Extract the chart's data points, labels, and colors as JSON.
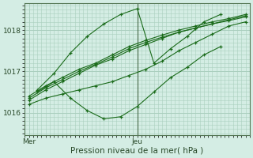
{
  "bg_color": "#d4ede4",
  "grid_color": "#aacfbe",
  "line_color": "#1a6b1a",
  "marker_color": "#1a6b1a",
  "xlabel": "Pression niveau de la mer( hPa )",
  "xlabel_fontsize": 7.5,
  "tick_fontsize": 6.5,
  "ylim": [
    1015.45,
    1018.65
  ],
  "yticks": [
    1016,
    1017,
    1018
  ],
  "xlim": [
    0,
    54
  ],
  "xtick_positions": [
    1,
    27
  ],
  "xticklabels": [
    "Mer",
    "Jeu"
  ],
  "vline_x": 27,
  "series": [
    {
      "x": [
        1,
        5,
        9,
        13,
        17,
        21,
        25,
        29,
        33,
        37,
        41,
        45,
        49,
        53
      ],
      "y": [
        1016.3,
        1016.55,
        1016.75,
        1016.95,
        1017.15,
        1017.3,
        1017.5,
        1017.65,
        1017.8,
        1017.95,
        1018.05,
        1018.15,
        1018.25,
        1018.35
      ]
    },
    {
      "x": [
        1,
        5,
        9,
        13,
        17,
        21,
        25,
        29,
        33,
        37,
        41,
        45,
        49,
        53
      ],
      "y": [
        1016.2,
        1016.35,
        1016.45,
        1016.55,
        1016.65,
        1016.75,
        1016.9,
        1017.05,
        1017.25,
        1017.5,
        1017.7,
        1017.9,
        1018.1,
        1018.2
      ]
    },
    {
      "x": [
        1,
        5,
        9,
        13,
        17,
        21,
        25,
        29,
        33,
        37,
        41,
        45,
        49,
        53
      ],
      "y": [
        1016.4,
        1016.65,
        1016.85,
        1017.05,
        1017.2,
        1017.4,
        1017.6,
        1017.75,
        1017.88,
        1018.0,
        1018.1,
        1018.2,
        1018.28,
        1018.38
      ]
    },
    {
      "x": [
        1,
        5,
        9,
        13,
        17,
        21,
        25,
        29,
        33,
        37,
        41,
        45,
        49,
        53
      ],
      "y": [
        1016.35,
        1016.6,
        1016.8,
        1017.0,
        1017.17,
        1017.35,
        1017.55,
        1017.7,
        1017.83,
        1017.95,
        1018.05,
        1018.15,
        1018.23,
        1018.32
      ]
    },
    {
      "x": [
        3,
        7,
        11,
        15,
        19,
        23,
        27,
        31,
        35,
        39,
        43,
        47
      ],
      "y": [
        1016.55,
        1016.95,
        1017.45,
        1017.85,
        1018.15,
        1018.38,
        1018.52,
        1017.2,
        1017.55,
        1017.85,
        1018.2,
        1018.38
      ]
    },
    {
      "x": [
        3,
        7,
        11,
        15,
        19,
        23,
        27,
        31,
        35,
        39,
        43,
        47
      ],
      "y": [
        1016.5,
        1016.75,
        1016.35,
        1016.05,
        1015.85,
        1015.9,
        1016.15,
        1016.5,
        1016.85,
        1017.1,
        1017.4,
        1017.6
      ]
    }
  ]
}
